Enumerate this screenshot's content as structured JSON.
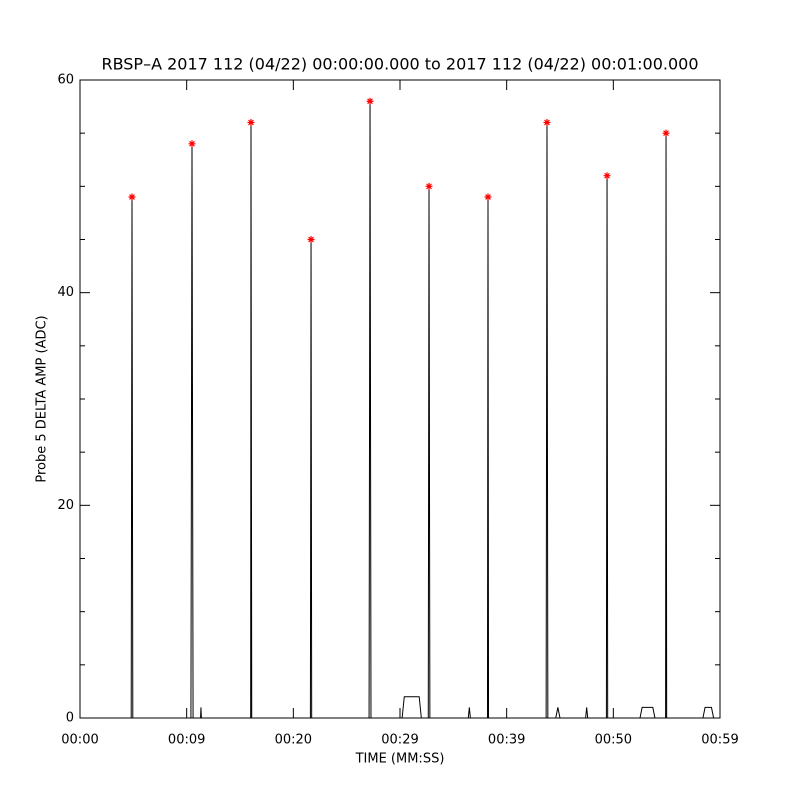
{
  "chart_data": {
    "type": "line",
    "title": "RBSP–A 2017 112 (04/22) 00:00:00.000 to 2017 112 (04/22) 00:01:00.000",
    "xlabel": "TIME (MM:SS)",
    "ylabel": "Probe 5 DELTA AMP (ADC)",
    "xlim": [
      0,
      60
    ],
    "ylim": [
      0,
      60
    ],
    "xticks": [
      {
        "value": 0,
        "label": "00:00"
      },
      {
        "value": 10,
        "label": "00:09"
      },
      {
        "value": 20,
        "label": "00:20"
      },
      {
        "value": 30,
        "label": "00:29"
      },
      {
        "value": 40,
        "label": "00:39"
      },
      {
        "value": 50,
        "label": "00:50"
      },
      {
        "value": 60,
        "label": "00:59"
      }
    ],
    "yticks": [
      0,
      20,
      40,
      60
    ],
    "yminor_ticks": [
      5,
      10,
      15,
      25,
      30,
      35,
      45,
      50,
      55
    ],
    "series": [
      {
        "color": "#000000",
        "x": [
          0,
          4.8,
          4.875,
          4.95,
          10.4,
          10.5,
          10.6,
          11.3,
          11.34,
          11.38,
          16.0,
          16.03,
          16.1,
          21.6,
          21.66,
          21.72,
          27.1,
          27.19,
          27.28,
          30.2,
          30.4,
          30.6,
          31.8,
          32.0,
          32.65,
          32.72,
          32.8,
          36.4,
          36.5,
          36.6,
          38.2,
          38.25,
          38.3,
          43.7,
          43.78,
          43.86,
          44.6,
          44.8,
          45.0,
          47.4,
          47.5,
          47.6,
          49.35,
          49.41,
          49.47,
          52.5,
          52.7,
          53.7,
          53.9,
          54.9,
          54.94,
          55.0,
          58.4,
          58.6,
          59.2,
          59.4,
          60
        ],
        "values": [
          0,
          0,
          49,
          0,
          0,
          54,
          0,
          0,
          1,
          0,
          0,
          56,
          0,
          0,
          45,
          0,
          0,
          58,
          0,
          0,
          2,
          2,
          2,
          0,
          0,
          50,
          0,
          0,
          1,
          0,
          0,
          49,
          0,
          0,
          56,
          0,
          0,
          1,
          0,
          0,
          1,
          0,
          0,
          51,
          0,
          0,
          1,
          1,
          0,
          0,
          55,
          0,
          0,
          1,
          1,
          0,
          0
        ]
      },
      {
        "color": "#ff0000",
        "marker": "star",
        "x": [
          4.875,
          10.5,
          16.03,
          21.66,
          27.19,
          32.72,
          38.25,
          43.78,
          49.41,
          54.94
        ],
        "values": [
          49,
          54,
          56,
          45,
          58,
          50,
          49,
          56,
          51,
          55
        ]
      }
    ]
  }
}
